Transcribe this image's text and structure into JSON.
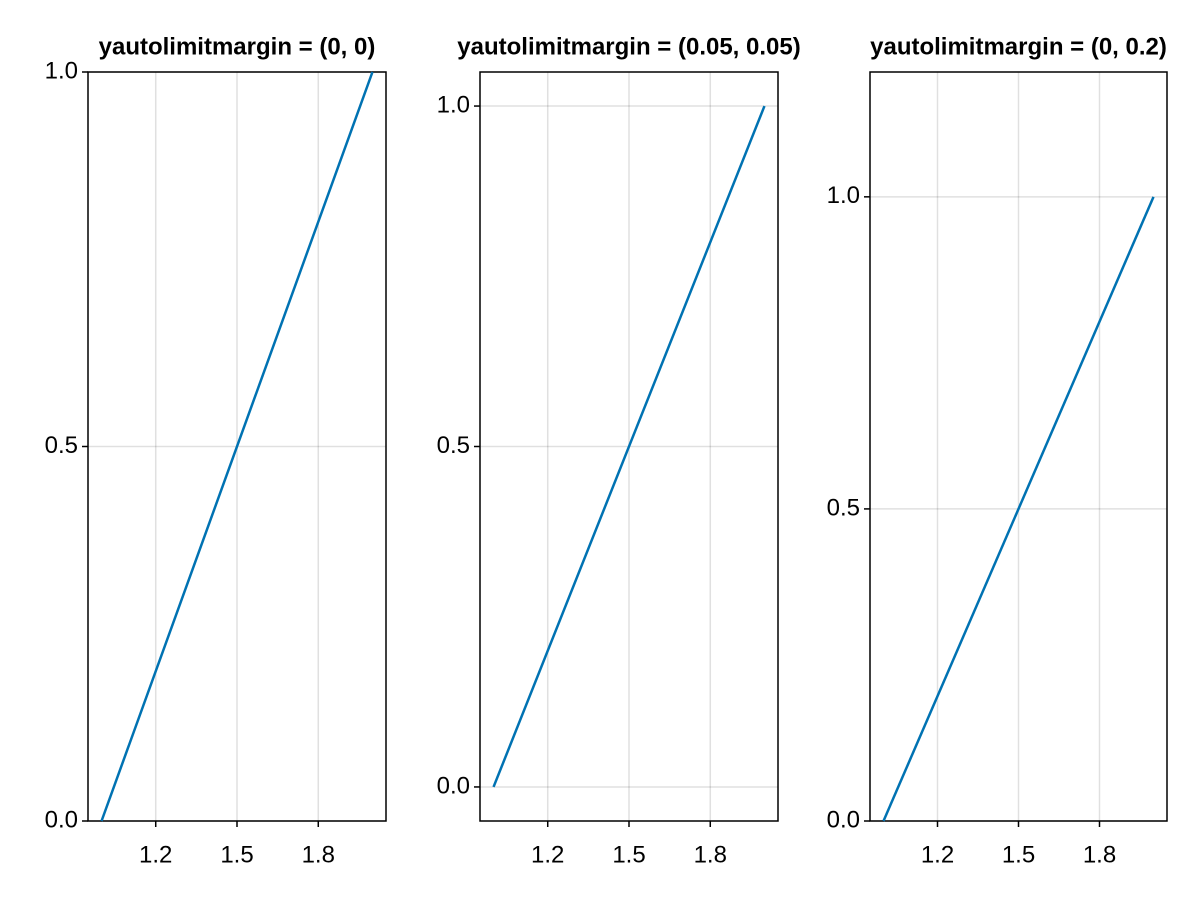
{
  "chart_data": [
    {
      "type": "line",
      "title": "yautolimitmargin = (0, 0)",
      "x": [
        1,
        2
      ],
      "series": [
        {
          "color": "#0072b2",
          "values": [
            0,
            1
          ]
        }
      ],
      "xlim": [
        0.95,
        2.05
      ],
      "xticks": [
        1.2,
        1.5,
        1.8
      ],
      "ylim": [
        0,
        1
      ],
      "yticks": [
        {
          "value": 0,
          "label": "0.0"
        },
        {
          "value": 0.5,
          "label": "0.5"
        },
        {
          "value": 1,
          "label": "1.0"
        }
      ],
      "grid": true
    },
    {
      "type": "line",
      "title": "yautolimitmargin = (0.05, 0.05)",
      "x": [
        1,
        2
      ],
      "series": [
        {
          "color": "#0072b2",
          "values": [
            0,
            1
          ]
        }
      ],
      "xlim": [
        0.95,
        2.05
      ],
      "xticks": [
        1.2,
        1.5,
        1.8
      ],
      "ylim": [
        -0.05,
        1.05
      ],
      "yticks": [
        {
          "value": 0,
          "label": "0.0"
        },
        {
          "value": 0.5,
          "label": "0.5"
        },
        {
          "value": 1,
          "label": "1.0"
        }
      ],
      "grid": true
    },
    {
      "type": "line",
      "title": "yautolimitmargin = (0, 0.2)",
      "x": [
        1,
        2
      ],
      "series": [
        {
          "color": "#0072b2",
          "values": [
            0,
            1
          ]
        }
      ],
      "xlim": [
        0.95,
        2.05
      ],
      "xticks": [
        1.2,
        1.5,
        1.8
      ],
      "ylim": [
        0,
        1.2
      ],
      "yticks": [
        {
          "value": 0,
          "label": "0.0"
        },
        {
          "value": 0.5,
          "label": "0.5"
        },
        {
          "value": 1,
          "label": "1.0"
        }
      ],
      "grid": true
    }
  ]
}
